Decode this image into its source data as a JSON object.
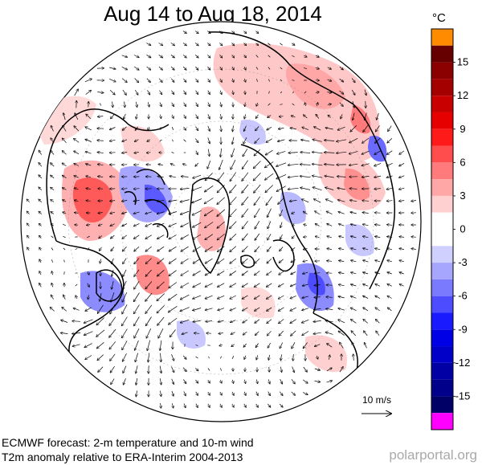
{
  "title": "Aug 14 to Aug 18, 2014",
  "colorbar": {
    "unit": "°C",
    "tick_labels": [
      "15",
      "12",
      "9",
      "6",
      "3",
      "0",
      "-3",
      "-6",
      "-9",
      "-12",
      "-15"
    ],
    "tick_values": [
      15,
      12,
      9,
      6,
      3,
      0,
      -3,
      -6,
      -9,
      -12,
      -15
    ],
    "bins": [
      {
        "range": ">16.5",
        "color": "#ff8c00"
      },
      {
        "range": "15 to 16.5",
        "color": "#660000"
      },
      {
        "range": "13.5 to 15",
        "color": "#8b0000"
      },
      {
        "range": "12 to 13.5",
        "color": "#a50000"
      },
      {
        "range": "10.5 to 12",
        "color": "#c80000"
      },
      {
        "range": "9 to 10.5",
        "color": "#e60000"
      },
      {
        "range": "7.5 to 9",
        "color": "#ff1a1a"
      },
      {
        "range": "6 to 7.5",
        "color": "#ff4d4d"
      },
      {
        "range": "4.5 to 6",
        "color": "#ff7a7a"
      },
      {
        "range": "3 to 4.5",
        "color": "#ffa6a6"
      },
      {
        "range": "1.5 to 3",
        "color": "#ffd0d0"
      },
      {
        "range": "0 to 1.5",
        "color": "#ffffff"
      },
      {
        "range": "-1.5 to 0",
        "color": "#ffffff"
      },
      {
        "range": "-3 to -1.5",
        "color": "#d0d0ff"
      },
      {
        "range": "-4.5 to -3",
        "color": "#a6a6ff"
      },
      {
        "range": "-6 to -4.5",
        "color": "#7a7aff"
      },
      {
        "range": "-7.5 to -6",
        "color": "#4d4dff"
      },
      {
        "range": "-9 to -7.5",
        "color": "#1a1aff"
      },
      {
        "range": "-10.5 to -9",
        "color": "#0000e6"
      },
      {
        "range": "-12 to -10.5",
        "color": "#0000c8"
      },
      {
        "range": "-13.5 to -12",
        "color": "#0000a5"
      },
      {
        "range": "-15 to -13.5",
        "color": "#00008b"
      },
      {
        "range": "-16.5 to -15",
        "color": "#000066"
      },
      {
        "range": "<-16.5",
        "color": "#ff00ff"
      }
    ]
  },
  "scale": {
    "label": "10 m/s"
  },
  "footer": {
    "line1": "ECMWF forecast: 2-m temperature and 10-m wind",
    "line2": "T2m anomaly relative to ERA-Interim 2004-2013"
  },
  "credit": "polarportal.org"
}
